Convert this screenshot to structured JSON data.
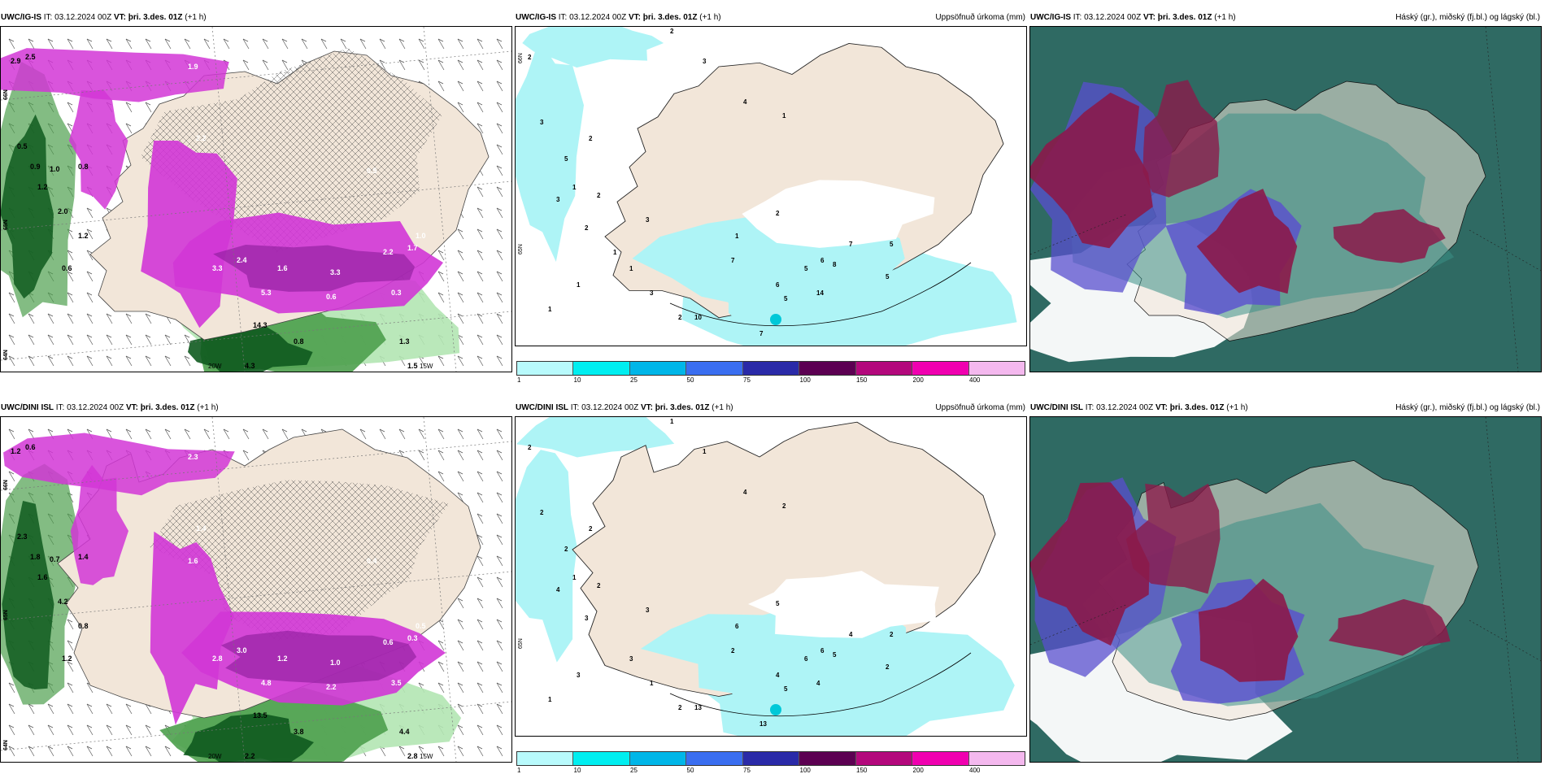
{
  "colors": {
    "land": "#f2e6d9",
    "sea": "#ffffff",
    "cyan_light": "#aef4f6",
    "magenta": "#d236d6",
    "purple": "#8a1c9a",
    "green_dark": "#0f5a1f",
    "green_mid": "#4ea04e",
    "green_light": "#b3e6b3",
    "cloud_bg": "#2f6a63",
    "cloud_red": "#8b1a4a",
    "cloud_blue": "#5a4fcf",
    "colorbar": [
      "#b8fafc",
      "#00eef0",
      "#00b6e8",
      "#3a6ef0",
      "#2a2aa8",
      "#5c0052",
      "#b3087c",
      "#f000b0",
      "#f4b8ee"
    ]
  },
  "rows": [
    {
      "precip_panel": {
        "model": "UWC/IG-IS",
        "it_label": "IT:",
        "it_value": "03.12.2024 00Z",
        "vt_label": "VT:",
        "vt_value": "þri. 3.des. 01Z",
        "lead": "(+1 h)",
        "lat_labels": [
          "66N",
          "65N",
          "64N"
        ],
        "lon_labels": [
          "20W",
          "15W"
        ],
        "values": [
          "2.9",
          "2.5",
          "2.0",
          "1.9",
          "0.5",
          "0.9",
          "1.0",
          "0.8",
          "1.2",
          "2.0",
          "1.2",
          "0.6",
          "2.2",
          "1.6",
          "2.4",
          "3.3",
          "2.2",
          "1.7",
          "1.0",
          "0.5",
          "0.3",
          "1.3",
          "1.5",
          "0.8",
          "14.3",
          "4.3",
          "0.6",
          "3.3",
          "5.3"
        ]
      },
      "accum_panel": {
        "model": "UWC/IG-IS",
        "it_label": "IT:",
        "it_value": "03.12.2024 00Z",
        "vt_label": "VT:",
        "vt_value": "þri. 3.des. 01Z",
        "lead": "(+1 h)",
        "title": "Uppsöfnuð úrkoma (mm)",
        "lat_labels": [
          "66N",
          "65N"
        ],
        "colorbar_ticks": [
          "1",
          "10",
          "25",
          "50",
          "75",
          "100",
          "150",
          "200",
          "400"
        ],
        "values": [
          "2",
          "3",
          "2",
          "1",
          "3",
          "5",
          "2",
          "1",
          "2",
          "3",
          "3",
          "2",
          "3",
          "2",
          "4",
          "2",
          "1",
          "1",
          "1",
          "7",
          "6",
          "5",
          "5",
          "6",
          "8",
          "7",
          "10",
          "7",
          "14",
          "5",
          "5",
          "1",
          "1"
        ]
      },
      "cloud_panel": {
        "model": "UWC/IG-IS",
        "it_label": "IT:",
        "it_value": "03.12.2024 00Z",
        "vt_label": "VT:",
        "vt_value": "þri. 3.des. 01Z",
        "lead": "(+1 h)",
        "title": "Háský (gr.), miðský (fj.bl.) og lágský (bl.)"
      }
    },
    {
      "precip_panel": {
        "model": "UWC/DINI ISL",
        "it_label": "IT:",
        "it_value": "03.12.2024 00Z",
        "vt_label": "VT:",
        "vt_value": "þri. 3.des. 01Z",
        "lead": "(+1 h)",
        "lat_labels": [
          "66N",
          "65N",
          "64N"
        ],
        "lon_labels": [
          "20W",
          "15W"
        ],
        "values": [
          "1.2",
          "0.6",
          "1.8",
          "2.3",
          "2.3",
          "1.8",
          "0.7",
          "1.4",
          "1.6",
          "4.2",
          "0.8",
          "1.2",
          "1.4",
          "1.2",
          "3.0",
          "1.0",
          "0.6",
          "0.3",
          "0.5",
          "0.4",
          "3.5",
          "4.4",
          "2.8",
          "3.8",
          "13.5",
          "2.2",
          "2.2",
          "2.8",
          "4.8",
          "1.6"
        ]
      },
      "accum_panel": {
        "model": "UWC/DINI ISL",
        "it_label": "IT:",
        "it_value": "03.12.2024 00Z",
        "vt_label": "VT:",
        "vt_value": "þri. 3.des. 01Z",
        "lead": "(+1 h)",
        "title": "Uppsöfnuð úrkoma (mm)",
        "lat_labels": [
          "65N"
        ],
        "colorbar_ticks": [
          "1",
          "10",
          "25",
          "50",
          "75",
          "100",
          "150",
          "200",
          "400"
        ],
        "values": [
          "1",
          "1",
          "2",
          "2",
          "2",
          "2",
          "2",
          "1",
          "2",
          "4",
          "3",
          "3",
          "1",
          "2",
          "4",
          "5",
          "6",
          "1",
          "3",
          "2",
          "4",
          "5",
          "6",
          "6",
          "5",
          "4",
          "13",
          "13",
          "4",
          "2",
          "2",
          "3"
        ]
      },
      "cloud_panel": {
        "model": "UWC/DINI ISL",
        "it_label": "IT:",
        "it_value": "03.12.2024 00Z",
        "vt_label": "VT:",
        "vt_value": "þri. 3.des. 01Z",
        "lead": "(+1 h)",
        "title": "Háský (gr.), miðský (fj.bl.) og lágský (bl.)"
      }
    }
  ]
}
